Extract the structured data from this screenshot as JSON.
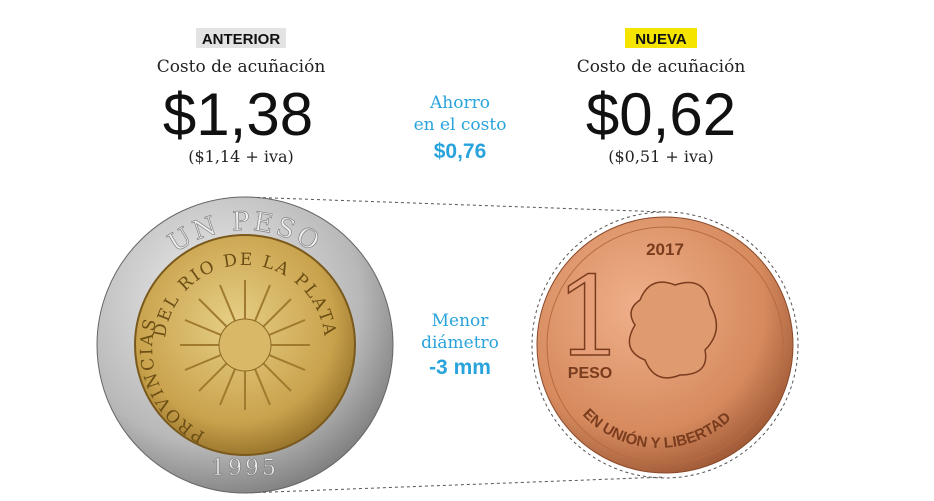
{
  "left": {
    "badge": "ANTERIOR",
    "label": "Costo de acuñación",
    "price": "$1,38",
    "note": "($1,14 + iva)",
    "coin": {
      "top": "UN PESO",
      "inner_top": "DEL RIO DE LA PLATA",
      "inner_left": "PROVINCIAS",
      "year": "1995"
    }
  },
  "right": {
    "badge": "NUEVA",
    "label": "Costo de acuñación",
    "price": "$0,62",
    "note": "($0,51 + iva)",
    "coin": {
      "year": "2017",
      "numeral": "1",
      "unit": "PESO",
      "motto": "EN UNIÓN Y LIBERTAD"
    }
  },
  "middle": {
    "saving": {
      "line1": "Ahorro",
      "line2": "en el costo",
      "value": "$0,76"
    },
    "diameter": {
      "line1": "Menor",
      "line2": "diámetro",
      "value": "-3 mm"
    }
  }
}
